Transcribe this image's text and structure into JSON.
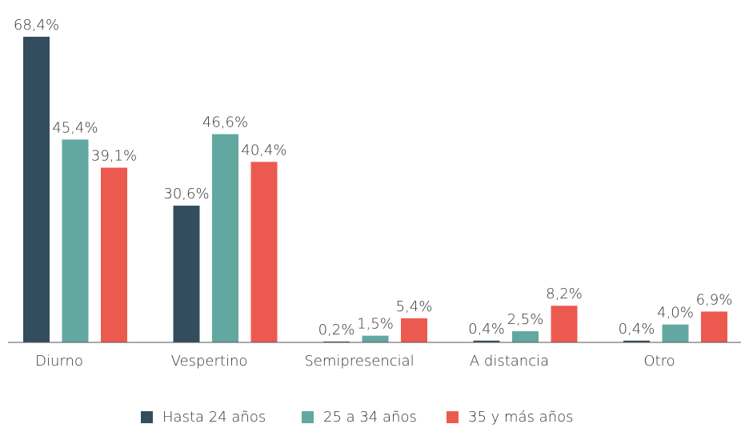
{
  "chart_data": {
    "type": "bar",
    "categories": [
      "Diurno",
      "Vespertino",
      "Semipresencial",
      "A distancia",
      "Otro"
    ],
    "series": [
      {
        "name": "Hasta 24 años",
        "color": "#334d5e",
        "values": [
          68.4,
          30.6,
          0.2,
          0.4,
          0.4
        ],
        "value_labels": [
          "68,4%",
          "30,6%",
          "0,2%",
          "0,4%",
          "0,4%"
        ]
      },
      {
        "name": "25 a 34 años",
        "color": "#62a8a0",
        "values": [
          45.4,
          46.6,
          1.5,
          2.5,
          4.0
        ],
        "value_labels": [
          "45,4%",
          "46,6%",
          "1,5%",
          "2,5%",
          "4,0%"
        ]
      },
      {
        "name": "35 y más años",
        "color": "#ec5a4f",
        "values": [
          39.1,
          40.4,
          5.4,
          8.2,
          6.9
        ],
        "value_labels": [
          "39,1%",
          "40,4%",
          "5,4%",
          "8,2%",
          "6,9%"
        ]
      }
    ],
    "ylim": [
      0,
      70
    ],
    "legend": "bottom"
  }
}
